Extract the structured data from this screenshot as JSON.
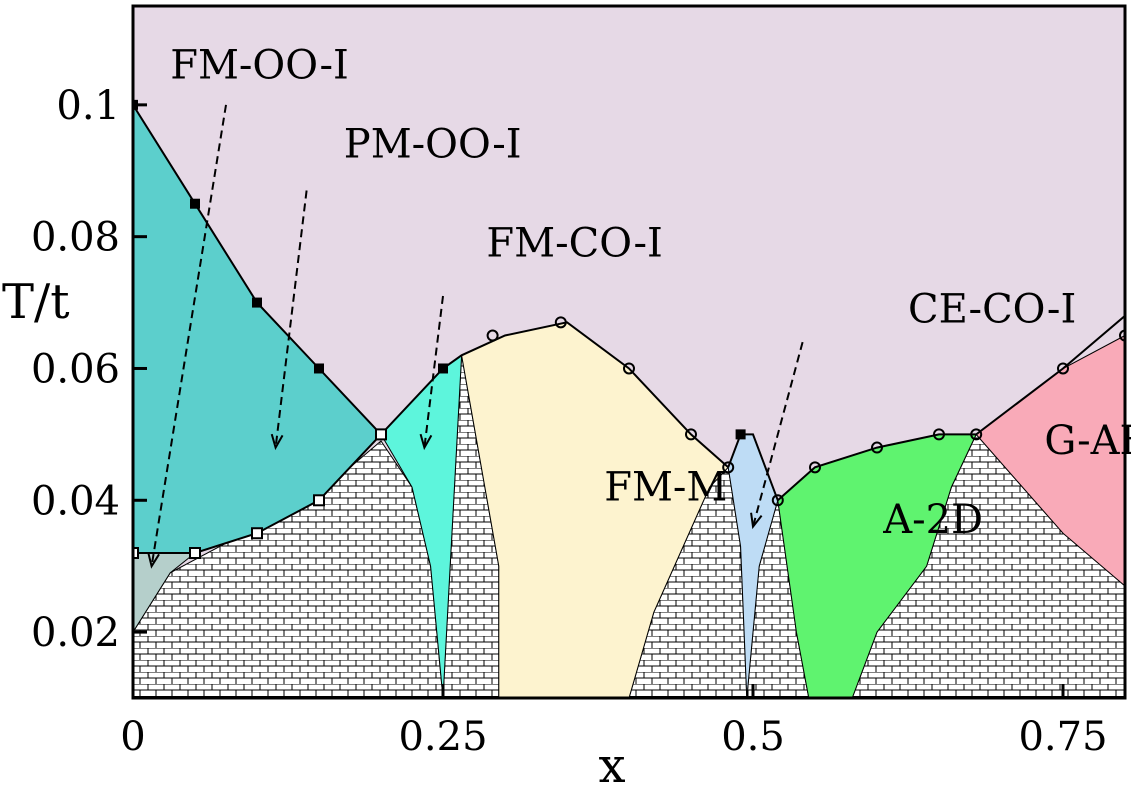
{
  "chart_data": {
    "type": "phase-diagram",
    "xlabel": "x",
    "ylabel": "T/t",
    "xlim": [
      0,
      0.8
    ],
    "ylim": [
      0.01,
      0.115
    ],
    "xticks": [
      {
        "value": 0,
        "label": "0"
      },
      {
        "value": 0.25,
        "label": "0.25"
      },
      {
        "value": 0.5,
        "label": "0.5"
      },
      {
        "value": 0.75,
        "label": "0.75"
      }
    ],
    "yticks": [
      {
        "value": 0.02,
        "label": "0.02"
      },
      {
        "value": 0.04,
        "label": "0.04"
      },
      {
        "value": 0.06,
        "label": "0.06"
      },
      {
        "value": 0.08,
        "label": "0.08"
      },
      {
        "value": 0.1,
        "label": "0.1"
      }
    ],
    "colors": {
      "PM-OO-I": "#e6d9e6",
      "FM-OO-I": "#5ccfcc",
      "PM-OO-I-low": "#b5cfcb",
      "FM-CO-I": "#5df5dc",
      "FM-M": "#fdf3cf",
      "CE-CO-I": "#bedcf5",
      "A-2D": "#5ff36f",
      "G-AF": "#f9aab8",
      "brick": "#ffffff"
    },
    "regions": [
      {
        "name": "FM-OO-I",
        "points": [
          [
            0,
            0.1
          ],
          [
            0.05,
            0.085
          ],
          [
            0.1,
            0.07
          ],
          [
            0.15,
            0.06
          ],
          [
            0.2,
            0.05
          ],
          [
            0.15,
            0.04
          ],
          [
            0.1,
            0.035
          ],
          [
            0.05,
            0.032
          ],
          [
            0,
            0.032
          ]
        ]
      },
      {
        "name": "PM-OO-I-low",
        "points": [
          [
            0,
            0.032
          ],
          [
            0.05,
            0.032
          ],
          [
            0.03,
            0.029
          ],
          [
            0,
            0.02
          ]
        ]
      },
      {
        "name": "FM-CO-I",
        "points": [
          [
            0.2,
            0.05
          ],
          [
            0.25,
            0.06
          ],
          [
            0.265,
            0.062
          ],
          [
            0.25,
            0.01
          ],
          [
            0.24,
            0.03
          ],
          [
            0.225,
            0.042
          ]
        ]
      },
      {
        "name": "FM-M",
        "points": [
          [
            0.265,
            0.062
          ],
          [
            0.3,
            0.065
          ],
          [
            0.35,
            0.067
          ],
          [
            0.4,
            0.06
          ],
          [
            0.45,
            0.05
          ],
          [
            0.48,
            0.045
          ],
          [
            0.465,
            0.042
          ],
          [
            0.42,
            0.023
          ],
          [
            0.4,
            0.01
          ],
          [
            0.295,
            0.01
          ],
          [
            0.295,
            0.03
          ],
          [
            0.265,
            0.062
          ]
        ]
      },
      {
        "name": "CE-CO-I",
        "points": [
          [
            0.48,
            0.045
          ],
          [
            0.49,
            0.05
          ],
          [
            0.5,
            0.05
          ],
          [
            0.52,
            0.04
          ],
          [
            0.505,
            0.03
          ],
          [
            0.495,
            0.01
          ],
          [
            0.49,
            0.033
          ]
        ]
      },
      {
        "name": "A-2D",
        "points": [
          [
            0.52,
            0.04
          ],
          [
            0.55,
            0.045
          ],
          [
            0.6,
            0.048
          ],
          [
            0.65,
            0.05
          ],
          [
            0.68,
            0.05
          ],
          [
            0.66,
            0.042
          ],
          [
            0.64,
            0.03
          ],
          [
            0.6,
            0.02
          ],
          [
            0.58,
            0.01
          ],
          [
            0.545,
            0.01
          ],
          [
            0.535,
            0.02
          ],
          [
            0.52,
            0.04
          ]
        ]
      },
      {
        "name": "G-AF",
        "points": [
          [
            0.68,
            0.05
          ],
          [
            0.75,
            0.06
          ],
          [
            0.8,
            0.065
          ],
          [
            0.8,
            0.068
          ],
          [
            0.8,
            0.027
          ],
          [
            0.75,
            0.035
          ],
          [
            0.68,
            0.05
          ]
        ]
      }
    ],
    "boundary_lines": [
      [
        [
          0,
          0.1
        ],
        [
          0.05,
          0.085
        ],
        [
          0.1,
          0.07
        ],
        [
          0.15,
          0.06
        ],
        [
          0.2,
          0.05
        ]
      ],
      [
        [
          0.2,
          0.05
        ],
        [
          0.25,
          0.06
        ],
        [
          0.265,
          0.062
        ],
        [
          0.3,
          0.065
        ],
        [
          0.35,
          0.067
        ],
        [
          0.4,
          0.06
        ],
        [
          0.45,
          0.05
        ],
        [
          0.48,
          0.045
        ]
      ],
      [
        [
          0.48,
          0.045
        ],
        [
          0.49,
          0.05
        ],
        [
          0.5,
          0.05
        ],
        [
          0.52,
          0.04
        ],
        [
          0.55,
          0.045
        ],
        [
          0.6,
          0.048
        ],
        [
          0.65,
          0.05
        ],
        [
          0.68,
          0.05
        ],
        [
          0.75,
          0.06
        ],
        [
          0.8,
          0.068
        ]
      ],
      [
        [
          0,
          0.032
        ],
        [
          0.05,
          0.032
        ],
        [
          0.1,
          0.035
        ],
        [
          0.15,
          0.04
        ],
        [
          0.2,
          0.05
        ]
      ]
    ],
    "markers_filled": [
      [
        0,
        0.1
      ],
      [
        0.05,
        0.085
      ],
      [
        0.1,
        0.07
      ],
      [
        0.15,
        0.06
      ],
      [
        0.25,
        0.06
      ],
      [
        0.49,
        0.05
      ]
    ],
    "markers_open_square": [
      [
        0,
        0.032
      ],
      [
        0.05,
        0.032
      ],
      [
        0.1,
        0.035
      ],
      [
        0.15,
        0.04
      ],
      [
        0.2,
        0.05
      ]
    ],
    "markers_open_circle": [
      [
        0.29,
        0.065
      ],
      [
        0.345,
        0.067
      ],
      [
        0.4,
        0.06
      ],
      [
        0.45,
        0.05
      ],
      [
        0.48,
        0.045
      ],
      [
        0.52,
        0.04
      ],
      [
        0.55,
        0.045
      ],
      [
        0.6,
        0.048
      ],
      [
        0.65,
        0.05
      ],
      [
        0.68,
        0.05
      ],
      [
        0.75,
        0.06
      ],
      [
        0.8,
        0.065
      ]
    ],
    "labels": [
      {
        "text": "FM-OO-I",
        "x": 0.03,
        "y": 0.104
      },
      {
        "text": "PM-OO-I",
        "x": 0.17,
        "y": 0.092
      },
      {
        "text": "FM-CO-I",
        "x": 0.285,
        "y": 0.077
      },
      {
        "text": "CE-CO-I",
        "x": 0.625,
        "y": 0.067
      },
      {
        "text": "FM-M",
        "x": 0.38,
        "y": 0.04
      },
      {
        "text": "A-2D",
        "x": 0.605,
        "y": 0.035
      },
      {
        "text": "G-AF",
        "x": 0.735,
        "y": 0.047
      }
    ],
    "arrows": [
      {
        "from": [
          0.075,
          0.1
        ],
        "to": [
          0.015,
          0.03
        ]
      },
      {
        "from": [
          0.14,
          0.087
        ],
        "to": [
          0.115,
          0.048
        ]
      },
      {
        "from": [
          0.25,
          0.071
        ],
        "to": [
          0.235,
          0.048
        ]
      },
      {
        "from": [
          0.54,
          0.064
        ],
        "to": [
          0.5,
          0.036
        ]
      }
    ]
  }
}
